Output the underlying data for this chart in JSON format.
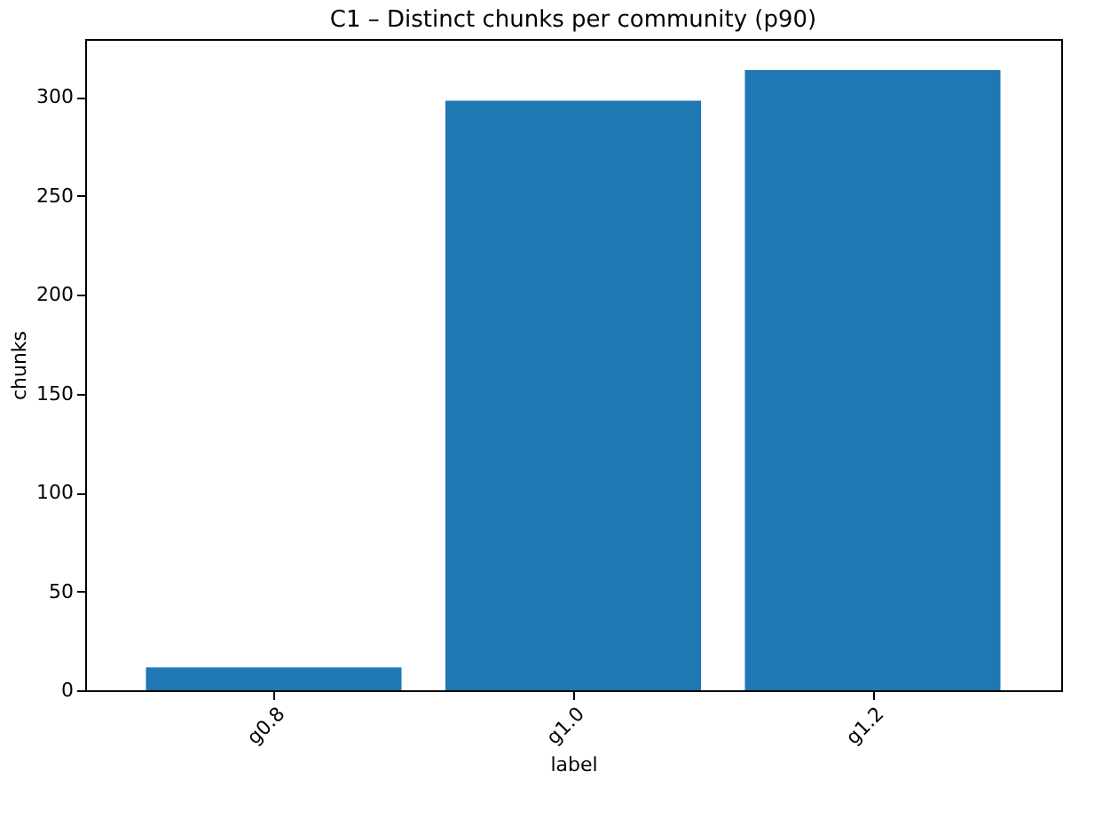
{
  "chart_data": {
    "type": "bar",
    "title": "C1 – Distinct chunks per community (p90)",
    "xlabel": "label",
    "ylabel": "chunks",
    "categories": [
      "g0.8",
      "g1.0",
      "g1.2"
    ],
    "series": [
      {
        "color": "#1f77b4",
        "values": [
          11.5,
          298,
          313.5
        ]
      }
    ],
    "ylim": [
      0,
      329.2
    ],
    "yticks": [
      0,
      50,
      100,
      150,
      200,
      250,
      300
    ],
    "grid": false,
    "legend": false
  }
}
